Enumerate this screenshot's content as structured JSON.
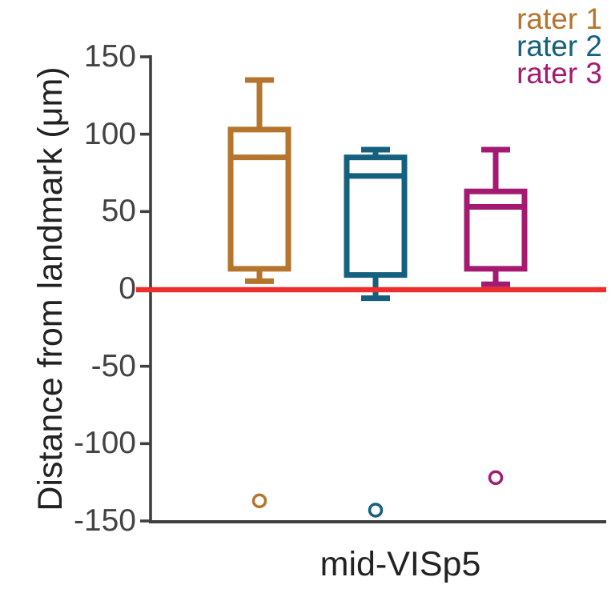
{
  "chart_data": {
    "type": "box",
    "categories": [
      "mid-VISp5"
    ],
    "xlabel": "mid-VISp5",
    "ylabel": "Distance from landmark (μm)",
    "ylim": [
      -150,
      150
    ],
    "yticks": [
      150,
      100,
      50,
      0,
      -50,
      -100,
      -150
    ],
    "grid": false,
    "legend_position": "top-right",
    "axis_color": "#3f3f3f",
    "tick_label_color": "#434343",
    "label_color": "#222222",
    "reference_line": {
      "y": 0,
      "color": "#ee2d2d"
    },
    "series": [
      {
        "name": "rater 1",
        "color": "#b5752c",
        "whisker_low": 5,
        "q1": 13,
        "median": 85,
        "q3": 103,
        "whisker_high": 135,
        "outliers": [
          -137
        ]
      },
      {
        "name": "rater 2",
        "color": "#15607f",
        "whisker_low": -6,
        "q1": 9,
        "median": 73,
        "q3": 85,
        "whisker_high": 90,
        "outliers": [
          -143
        ]
      },
      {
        "name": "rater 3",
        "color": "#a41a70",
        "whisker_low": 3,
        "q1": 13,
        "median": 53,
        "q3": 63,
        "whisker_high": 90,
        "outliers": [
          -122
        ]
      }
    ]
  }
}
